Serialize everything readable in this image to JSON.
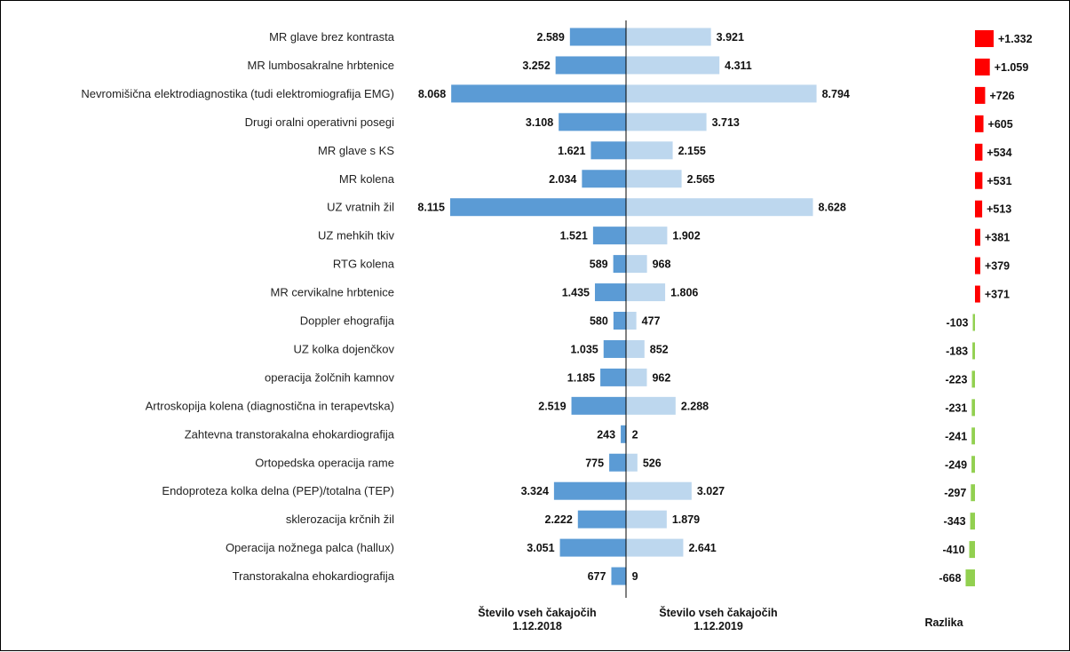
{
  "chart_data": {
    "type": "bar",
    "categories": [
      "MR glave brez kontrasta",
      "MR lumbosakralne hrbtenice",
      "Nevromišična elektrodiagnostika (tudi elektromiografija EMG)",
      "Drugi oralni operativni posegi",
      "MR glave s KS",
      "MR kolena",
      "UZ vratnih žil",
      "UZ mehkih tkiv",
      "RTG kolena",
      "MR cervikalne hrbtenice",
      "Doppler ehografija",
      "UZ kolka dojenčkov",
      "operacija žolčnih kamnov",
      "Artroskopija kolena (diagnostična in terapevtska)",
      "Zahtevna transtorakalna ehokardiografija",
      "Ortopedska operacija rame",
      "Endoproteza kolka delna (PEP)/totalna (TEP)",
      "sklerozacija krčnih žil",
      "Operacija nožnega palca (hallux)",
      "Transtorakalna ehokardiografija"
    ],
    "series": [
      {
        "name": "Število vseh čakajočih 1.12.2018",
        "color": "#5b9bd5",
        "values": [
          2589,
          3252,
          8068,
          3108,
          1621,
          2034,
          8115,
          1521,
          589,
          1435,
          580,
          1035,
          1185,
          2519,
          243,
          775,
          3324,
          2222,
          3051,
          677
        ],
        "labels": [
          "2.589",
          "3.252",
          "8.068",
          "3.108",
          "1.621",
          "2.034",
          "8.115",
          "1.521",
          "589",
          "1.435",
          "580",
          "1.035",
          "1.185",
          "2.519",
          "243",
          "775",
          "3.324",
          "2.222",
          "3.051",
          "677"
        ]
      },
      {
        "name": "Število vseh čakajočih 1.12.2019",
        "color": "#bdd7ee",
        "values": [
          3921,
          4311,
          8794,
          3713,
          2155,
          2565,
          8628,
          1902,
          968,
          1806,
          477,
          852,
          962,
          2288,
          2,
          526,
          3027,
          1879,
          2641,
          9
        ],
        "labels": [
          "3.921",
          "4.311",
          "8.794",
          "3.713",
          "2.155",
          "2.565",
          "8.628",
          "1.902",
          "968",
          "1.806",
          "477",
          "852",
          "962",
          "2.288",
          "2",
          "526",
          "3.027",
          "1.879",
          "2.641",
          "9"
        ]
      },
      {
        "name": "Razlika",
        "positive_color": "#ff0000",
        "negative_color": "#92d050",
        "values": [
          1332,
          1059,
          726,
          605,
          534,
          531,
          513,
          381,
          379,
          371,
          -103,
          -183,
          -223,
          -231,
          -241,
          -249,
          -297,
          -343,
          -410,
          -668
        ],
        "labels": [
          "+1.332",
          "+1.059",
          "+726",
          "+605",
          "+534",
          "+531",
          "+513",
          "+381",
          "+379",
          "+371",
          "-103",
          "-183",
          "-223",
          "-231",
          "-241",
          "-249",
          "-297",
          "-343",
          "-410",
          "-668"
        ]
      }
    ],
    "headers": {
      "left_line1": "Število vseh čakajočih",
      "left_line2": "1.12.2018",
      "right_line1": "Število vseh čakajočih",
      "right_line2": "1.12.2019",
      "diff": "Razlika"
    }
  }
}
